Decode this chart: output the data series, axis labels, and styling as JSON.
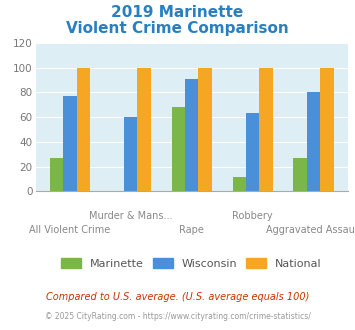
{
  "title_line1": "2019 Marinette",
  "title_line2": "Violent Crime Comparison",
  "title_color": "#2a7fc0",
  "categories": [
    "All Violent Crime",
    "Murder & Mans...",
    "Rape",
    "Robbery",
    "Aggravated Assault"
  ],
  "top_labels": [
    "",
    "Murder & Mans...",
    "",
    "Robbery",
    ""
  ],
  "bottom_labels": [
    "All Violent Crime",
    "",
    "Rape",
    "",
    "Aggravated Assault"
  ],
  "marinette_values": [
    27,
    0,
    68,
    12,
    27
  ],
  "wisconsin_values": [
    77,
    60,
    91,
    63,
    80
  ],
  "national_values": [
    100,
    100,
    100,
    100,
    100
  ],
  "marinette_color": "#7ab648",
  "wisconsin_color": "#4a90d9",
  "national_color": "#f5a623",
  "ylim": [
    0,
    120
  ],
  "yticks": [
    0,
    20,
    40,
    60,
    80,
    100,
    120
  ],
  "legend_labels": [
    "Marinette",
    "Wisconsin",
    "National"
  ],
  "footnote1": "Compared to U.S. average. (U.S. average equals 100)",
  "footnote2": "© 2025 CityRating.com - https://www.cityrating.com/crime-statistics/",
  "footnote1_color": "#cc3300",
  "footnote2_color": "#999999",
  "fig_bg": "#ffffff",
  "plot_bg": "#deeef5"
}
